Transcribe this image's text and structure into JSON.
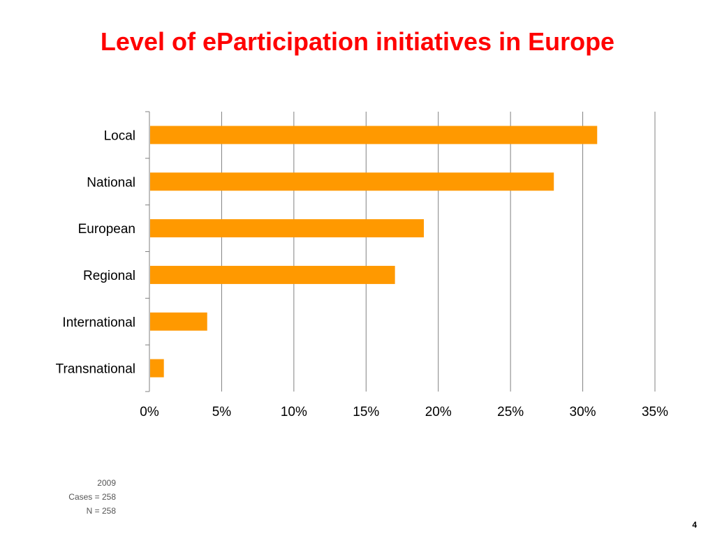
{
  "slide": {
    "title": "Level of eParticipation initiatives in Europe",
    "page_number": "4"
  },
  "notes": {
    "year": "2009",
    "cases": "Cases = 258",
    "n": "N = 258"
  },
  "colors": {
    "title": "#ff0000",
    "bar": "#ff9900",
    "grid": "#808080"
  },
  "chart_data": {
    "type": "bar",
    "orientation": "horizontal",
    "categories": [
      "Local",
      "National",
      "European",
      "Regional",
      "International",
      "Transnational"
    ],
    "values": [
      31,
      28,
      19,
      17,
      4,
      1
    ],
    "value_unit": "%",
    "xlim": [
      0,
      35
    ],
    "x_ticks": [
      "0%",
      "5%",
      "10%",
      "15%",
      "20%",
      "25%",
      "30%",
      "35%"
    ],
    "x_tick_values": [
      0,
      5,
      10,
      15,
      20,
      25,
      30,
      35
    ],
    "grid": "vertical",
    "legend": "none"
  }
}
